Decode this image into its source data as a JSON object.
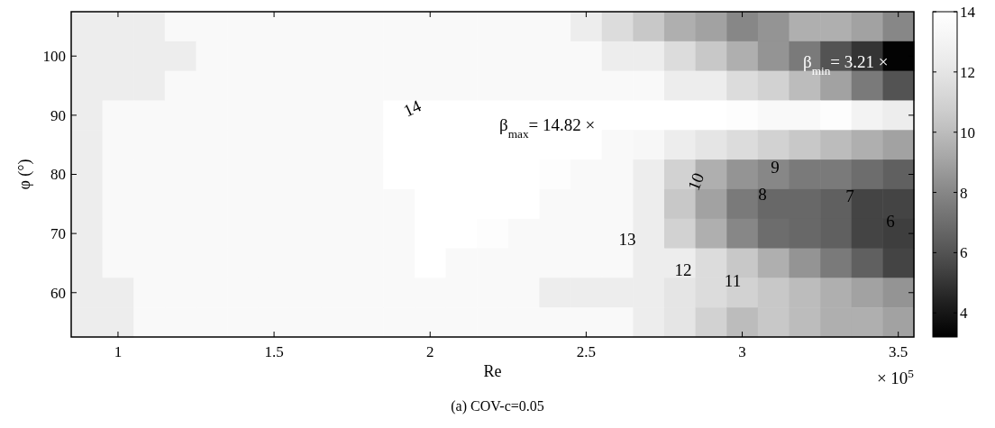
{
  "chart_data": {
    "type": "heatmap",
    "xlabel": "Re",
    "ylabel": "φ (°)",
    "categories": [
      null,
      "1",
      null,
      null,
      null,
      null,
      "1.5",
      null,
      null,
      null,
      null,
      "2",
      null,
      null,
      null,
      null,
      "2.5",
      null,
      null,
      null,
      null,
      "3",
      null,
      null,
      null,
      null,
      "3.5"
    ],
    "y_categories": [
      null,
      "100",
      null,
      "90",
      null,
      "80",
      null,
      "70",
      null,
      "60",
      null
    ],
    "cells": [
      [
        12.5,
        12.5,
        12.5,
        13.5,
        13.5,
        13.5,
        13.5,
        13.5,
        13.5,
        13.5,
        13.5,
        13.5,
        13.5,
        13.5,
        13.5,
        13.5,
        12.5,
        11.5,
        10.5,
        9.5,
        9,
        8,
        8.5,
        9.5,
        9.5,
        9,
        8
      ],
      [
        12.5,
        12.5,
        12.5,
        12.5,
        13.5,
        13.5,
        13.5,
        13.5,
        13.5,
        13.5,
        13.5,
        13.5,
        13.5,
        13.5,
        13.5,
        13.5,
        13.5,
        12.5,
        12.5,
        11.5,
        10.5,
        9.5,
        8.5,
        7.5,
        6,
        5,
        3.3
      ],
      [
        12.5,
        12.5,
        12.5,
        13.5,
        13.5,
        13.5,
        13.5,
        13.5,
        13.5,
        13.5,
        13.5,
        13.5,
        13.5,
        13.5,
        13.5,
        13.5,
        13.5,
        13.5,
        13.5,
        12.5,
        12.5,
        11.5,
        11,
        10,
        9,
        7.5,
        6
      ],
      [
        12.5,
        13.5,
        13.5,
        13.5,
        13.5,
        13.5,
        13.5,
        13.5,
        13.5,
        13.5,
        14,
        14,
        14,
        14,
        14,
        14,
        14,
        14,
        14,
        14,
        14,
        13.8,
        13.5,
        13.5,
        13.8,
        13,
        12.5
      ],
      [
        12.5,
        13.5,
        13.5,
        13.5,
        13.5,
        13.5,
        13.5,
        13.5,
        13.5,
        13.5,
        14,
        14,
        14,
        14,
        14,
        14,
        14,
        13.5,
        13.3,
        12.5,
        12,
        11.5,
        11,
        10.5,
        10,
        9.5,
        9
      ],
      [
        12.5,
        13.5,
        13.5,
        13.5,
        13.5,
        13.5,
        13.5,
        13.5,
        13.5,
        13.5,
        14,
        14,
        14,
        14,
        14,
        13.8,
        13.5,
        13.5,
        12.5,
        11,
        9.5,
        8.5,
        8,
        7.5,
        7.5,
        7,
        6.5
      ],
      [
        12.5,
        13.5,
        13.5,
        13.5,
        13.5,
        13.5,
        13.5,
        13.5,
        13.5,
        13.5,
        13.5,
        14,
        14,
        14,
        14,
        13.5,
        13.5,
        13.5,
        12.5,
        10.5,
        9,
        7.5,
        6.8,
        6.8,
        6.5,
        5.5,
        5.5
      ],
      [
        12.5,
        13.5,
        13.5,
        13.5,
        13.5,
        13.5,
        13.5,
        13.5,
        13.5,
        13.5,
        13.5,
        14,
        14,
        13.8,
        13.5,
        13.5,
        13.5,
        13.5,
        12.5,
        11,
        9.5,
        8,
        7,
        6.8,
        6.5,
        5.5,
        5.3
      ],
      [
        12.5,
        13.5,
        13.5,
        13.5,
        13.5,
        13.5,
        13.5,
        13.5,
        13.5,
        13.5,
        13.5,
        14,
        13.5,
        13.5,
        13.5,
        13.5,
        13.5,
        13.5,
        12.5,
        12.5,
        11.5,
        10.5,
        9.5,
        8.5,
        7.5,
        6.5,
        5.5
      ],
      [
        12.5,
        12.5,
        13.5,
        13.5,
        13.5,
        13.5,
        13.5,
        13.5,
        13.5,
        13.5,
        13.5,
        13.5,
        13.5,
        13.5,
        13.5,
        12.5,
        12.5,
        12.5,
        12.5,
        12,
        11.5,
        11,
        10.5,
        10,
        9.5,
        9,
        8.5
      ],
      [
        12.5,
        12.5,
        13.5,
        13.5,
        13.5,
        13.5,
        13.5,
        13.5,
        13.5,
        13.5,
        13.5,
        13.5,
        13.5,
        13.5,
        13.5,
        13.5,
        13.5,
        13.5,
        12.5,
        12,
        11,
        10,
        10.5,
        10,
        9.5,
        9.5,
        9
      ]
    ],
    "clim": [
      3.2,
      14
    ],
    "cticks": [
      4,
      6,
      8,
      10,
      12,
      14
    ],
    "annotations": [
      "14",
      "13",
      "12",
      "11",
      "10",
      "9",
      "8",
      "7",
      "6",
      "β$_{max}$= 14.82 ×",
      "β$_{min}$= 3.21 ×",
      "× 10$^{5}$",
      "(a) COV-c=0.05"
    ]
  }
}
